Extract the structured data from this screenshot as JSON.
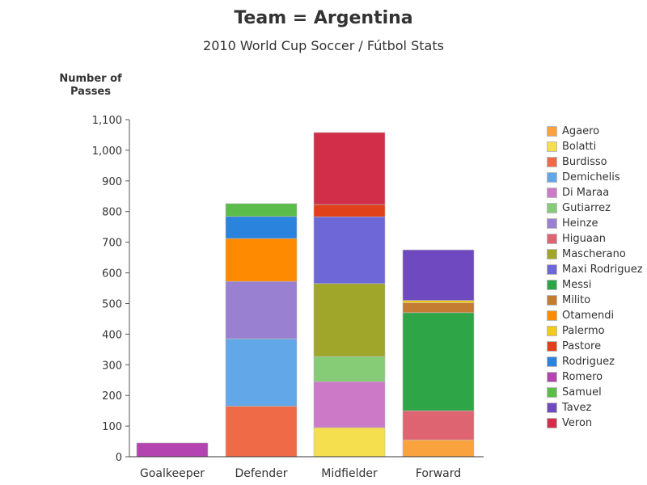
{
  "chart_data": {
    "type": "bar",
    "stacked": true,
    "title": "Team = Argentina",
    "subtitle": "2010 World Cup Soccer / Fútbol Stats",
    "ylabel": "Number of Passes",
    "xlabel": "",
    "ylim": [
      0,
      1100
    ],
    "yticks": [
      "0",
      "100",
      "200",
      "300",
      "400",
      "500",
      "600",
      "700",
      "800",
      "900",
      "1,000",
      "1,100"
    ],
    "categories": [
      "Goalkeeper",
      "Defender",
      "Midfielder",
      "Forward"
    ],
    "legend_position": "right",
    "series": [
      {
        "name": "Agaero",
        "color": "#f9a23e",
        "values": [
          0,
          0,
          0,
          55
        ]
      },
      {
        "name": "Bolatti",
        "color": "#f5df4e",
        "values": [
          0,
          0,
          95,
          0
        ]
      },
      {
        "name": "Burdisso",
        "color": "#ef6b48",
        "values": [
          0,
          165,
          0,
          0
        ]
      },
      {
        "name": "Demichelis",
        "color": "#62a7e8",
        "values": [
          0,
          220,
          0,
          0
        ]
      },
      {
        "name": "Di Maraa",
        "color": "#cc79c8",
        "values": [
          0,
          0,
          150,
          0
        ]
      },
      {
        "name": "Gutiarrez",
        "color": "#86cc77",
        "values": [
          0,
          0,
          82,
          0
        ]
      },
      {
        "name": "Heinze",
        "color": "#9a80d0",
        "values": [
          0,
          187,
          0,
          0
        ]
      },
      {
        "name": "Higuaan",
        "color": "#de6472",
        "values": [
          0,
          0,
          0,
          95
        ]
      },
      {
        "name": "Mascherano",
        "color": "#a0a62a",
        "values": [
          0,
          0,
          238,
          0
        ]
      },
      {
        "name": "Maxi Rodriguez",
        "color": "#6e67d8",
        "values": [
          0,
          0,
          218,
          0
        ]
      },
      {
        "name": "Messi",
        "color": "#2ea648",
        "values": [
          0,
          0,
          0,
          320
        ]
      },
      {
        "name": "Milito",
        "color": "#c47b32",
        "values": [
          0,
          0,
          0,
          32
        ]
      },
      {
        "name": "Otamendi",
        "color": "#fd8a00",
        "values": [
          0,
          140,
          0,
          0
        ]
      },
      {
        "name": "Palermo",
        "color": "#f1cb1c",
        "values": [
          0,
          0,
          0,
          8
        ]
      },
      {
        "name": "Pastore",
        "color": "#e0401a",
        "values": [
          0,
          0,
          40,
          0
        ]
      },
      {
        "name": "Rodriguez",
        "color": "#2a83dc",
        "values": [
          0,
          72,
          0,
          0
        ]
      },
      {
        "name": "Romero",
        "color": "#b444b0",
        "values": [
          45,
          0,
          0,
          0
        ]
      },
      {
        "name": "Samuel",
        "color": "#5cbc4a",
        "values": [
          0,
          42,
          0,
          0
        ]
      },
      {
        "name": "Tavez",
        "color": "#6e49c0",
        "values": [
          0,
          0,
          0,
          165
        ]
      },
      {
        "name": "Veron",
        "color": "#d22e4a",
        "values": [
          0,
          0,
          235,
          0
        ]
      }
    ]
  }
}
